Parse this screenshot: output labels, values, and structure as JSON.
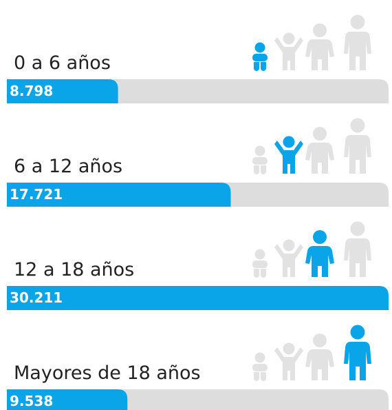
{
  "chart_data": {
    "type": "bar",
    "categories": [
      "0 a 6 años",
      "6 a 12 años",
      "12 a 18 años",
      "Mayores de 18 años"
    ],
    "values": [
      8798,
      17721,
      30211,
      9538
    ],
    "value_labels": [
      "8.798",
      "17.721",
      "30.211",
      "9.538"
    ],
    "xlim": [
      0,
      30211
    ],
    "color": "#0aa5e9",
    "track_color": "#dddddd"
  }
}
